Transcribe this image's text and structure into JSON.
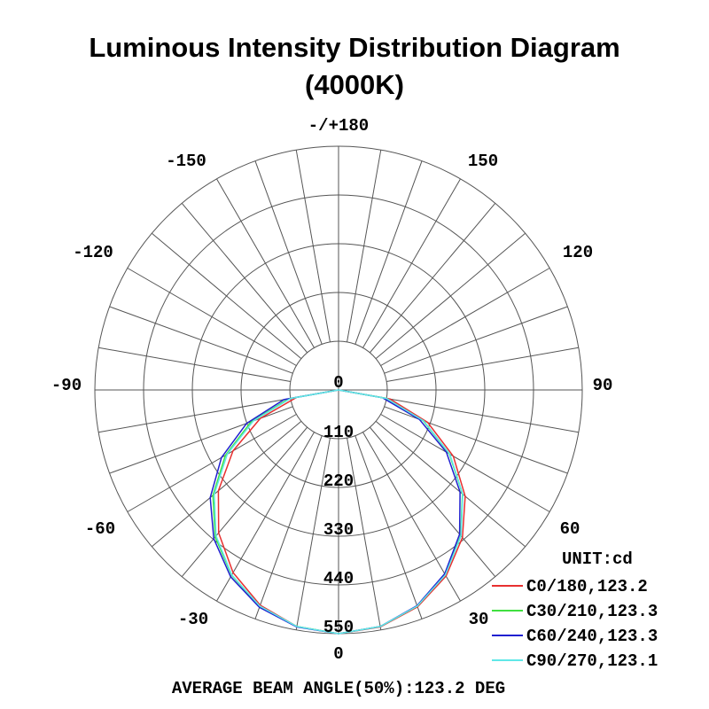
{
  "chart_data": {
    "type": "polar",
    "title": "Luminous Intensity Distribution Diagram",
    "subtitle": "(4000K)",
    "angle_labels": [
      "-/+180",
      "-150",
      "150",
      "-120",
      "120",
      "-90",
      "90",
      "-60",
      "60",
      "-30",
      "30",
      "0"
    ],
    "center_label": "0",
    "radial_ticks": [
      110,
      220,
      330,
      440,
      550
    ],
    "radial_max": 550,
    "grid": true,
    "unit_label": "UNIT:cd",
    "legend_placement": "bottom-right",
    "footer": "AVERAGE BEAM ANGLE(50%):123.2 DEG",
    "angles": [
      -90,
      -80,
      -70,
      -60,
      -50,
      -40,
      -30,
      -20,
      -10,
      0,
      10,
      20,
      30,
      40,
      50,
      60,
      70,
      80,
      90
    ],
    "series": [
      {
        "name": "C0/180,123.2",
        "color": "#e83030",
        "values": [
          0,
          96,
          188,
          275,
          354,
          421,
          476,
          517,
          542,
          550,
          543,
          521,
          485,
          435,
          373,
          299,
          214,
          118,
          0
        ]
      },
      {
        "name": "C30/210,123.3",
        "color": "#40e040",
        "values": [
          0,
          114,
          210,
          295,
          370,
          433,
          483,
          520,
          542,
          550,
          542,
          519,
          481,
          429,
          365,
          289,
          203,
          108,
          0
        ]
      },
      {
        "name": "C60/240,123.3",
        "color": "#2020d0",
        "values": [
          0,
          125,
          221,
          305,
          378,
          438,
          487,
          522,
          543,
          550,
          542,
          518,
          479,
          425,
          358,
          281,
          194,
          101,
          0
        ]
      },
      {
        "name": "C90/270,123.1",
        "color": "#60e8e8",
        "values": [
          0,
          110,
          205,
          290,
          366,
          430,
          482,
          519,
          542,
          550,
          542,
          519,
          482,
          430,
          366,
          290,
          205,
          110,
          0
        ]
      }
    ]
  }
}
